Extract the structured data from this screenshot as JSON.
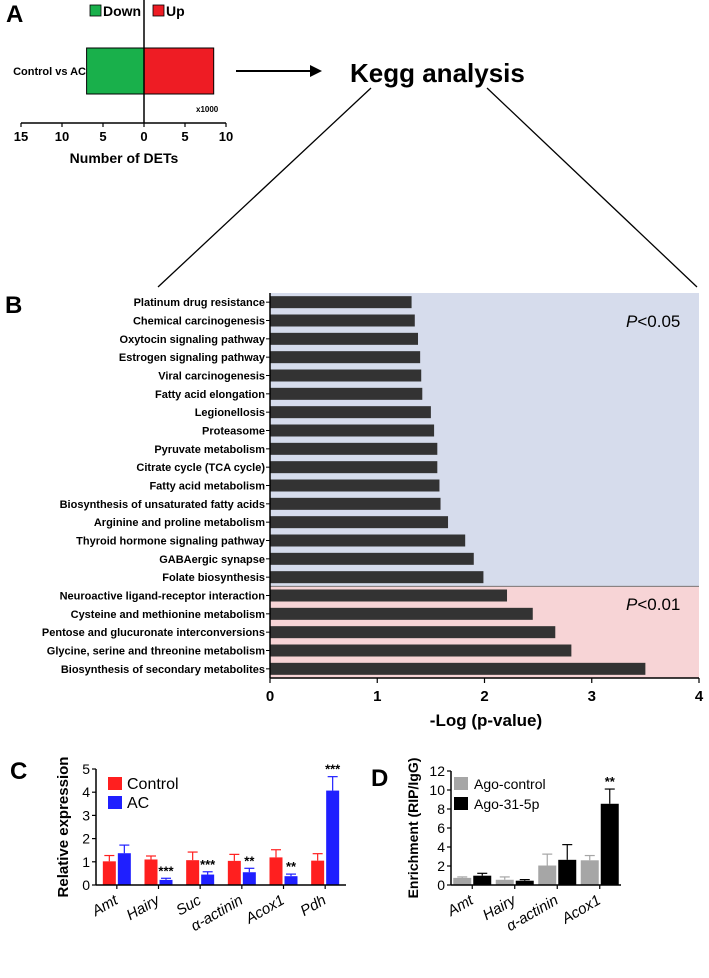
{
  "panel_labels": {
    "a": "A",
    "b": "B",
    "c": "C",
    "d": "D"
  },
  "colors": {
    "down": "#19b04b",
    "up": "#ee1c24",
    "bar_dark": "#333333",
    "sig_005_bg": "#d6dcec",
    "sig_001_bg": "#f7d4d6",
    "control": "#ff1f1f",
    "ac": "#1f1fff",
    "ago_control": "#a6a6a6",
    "ago_315p": "#000000"
  },
  "flow": {
    "title": "Kegg analysis"
  },
  "chart_data": [
    {
      "id": "A",
      "type": "bar",
      "orientation": "horizontal-diverging",
      "categories": [
        "Control vs AC"
      ],
      "series": [
        {
          "name": "Down",
          "values": [
            7
          ]
        },
        {
          "name": "Up",
          "values": [
            8.5
          ]
        }
      ],
      "xlabel": "Number of DETs",
      "x_ticks": [
        "15",
        "10",
        "5",
        "0",
        "5",
        "10"
      ],
      "x_tick_values": [
        -15,
        -10,
        -5,
        0,
        5,
        10
      ],
      "xlim": [
        -15,
        10
      ],
      "scale_note": "x1000",
      "legend": [
        "Down",
        "Up"
      ]
    },
    {
      "id": "B",
      "type": "bar",
      "orientation": "horizontal",
      "categories": [
        "Platinum drug resistance",
        "Chemical carcinogenesis",
        "Oxytocin signaling pathway",
        "Estrogen signaling pathway",
        "Viral carcinogenesis",
        "Fatty acid elongation",
        "Legionellosis",
        "Proteasome",
        "Pyruvate metabolism",
        "Citrate cycle (TCA cycle)",
        "Fatty acid metabolism",
        "Biosynthesis of unsaturated fatty acids",
        "Arginine and proline metabolism",
        "Thyroid hormone signaling pathway",
        "GABAergic synapse",
        "Folate biosynthesis",
        "Neuroactive ligand-receptor interaction",
        "Cysteine and methionine metabolism",
        "Pentose and glucuronate interconversions",
        "Glycine, serine and threonine metabolism",
        "Biosynthesis of secondary metabolites"
      ],
      "values": [
        1.32,
        1.35,
        1.38,
        1.4,
        1.41,
        1.42,
        1.5,
        1.53,
        1.56,
        1.56,
        1.58,
        1.59,
        1.66,
        1.82,
        1.9,
        1.99,
        2.21,
        2.45,
        2.66,
        2.81,
        3.5
      ],
      "xlabel": "-Log (p-value)",
      "x_ticks": [
        "0",
        "1",
        "2",
        "3",
        "4"
      ],
      "x_tick_values": [
        0,
        1,
        2,
        3,
        4
      ],
      "xlim": [
        0,
        4
      ],
      "regions": [
        {
          "label_italic": "P",
          "label_rest": "<0.05",
          "rows": 16
        },
        {
          "label_italic": "P",
          "label_rest": "<0.01",
          "rows": 5
        }
      ]
    },
    {
      "id": "C",
      "type": "bar",
      "orientation": "vertical",
      "categories": [
        "Amt",
        "Hairy",
        "Suc",
        "α-actinin",
        "Acox1",
        "Pdh"
      ],
      "series": [
        {
          "name": "Control",
          "values": [
            1.02,
            1.1,
            1.07,
            1.04,
            1.19,
            1.05
          ],
          "errors": [
            0.25,
            0.15,
            0.35,
            0.28,
            0.33,
            0.3
          ]
        },
        {
          "name": "AC",
          "values": [
            1.37,
            0.22,
            0.45,
            0.55,
            0.38,
            4.07
          ],
          "errors": [
            0.35,
            0.07,
            0.12,
            0.17,
            0.09,
            0.6
          ]
        }
      ],
      "significance": [
        {
          "category": "Hairy",
          "label": "***"
        },
        {
          "category": "Suc",
          "label": "***"
        },
        {
          "category": "α-actinin",
          "label": "**"
        },
        {
          "category": "Acox1",
          "label": "**"
        },
        {
          "category": "Pdh",
          "label": "***"
        }
      ],
      "ylabel": "Relative expression",
      "y_ticks": [
        "0",
        "1",
        "2",
        "3",
        "4",
        "5"
      ],
      "y_tick_values": [
        0,
        1,
        2,
        3,
        4,
        5
      ],
      "ylim": [
        0,
        5
      ],
      "legend": [
        "Control",
        "AC"
      ]
    },
    {
      "id": "D",
      "type": "bar",
      "orientation": "vertical",
      "categories": [
        "Amt",
        "Hairy",
        "α-actinin",
        "Acox1"
      ],
      "series": [
        {
          "name": "Ago-control",
          "values": [
            0.75,
            0.55,
            2.05,
            2.6
          ],
          "errors": [
            0.1,
            0.3,
            1.2,
            0.5
          ]
        },
        {
          "name": "Ago-31-5p",
          "values": [
            0.98,
            0.45,
            2.65,
            8.55
          ],
          "errors": [
            0.25,
            0.12,
            1.6,
            1.55
          ]
        }
      ],
      "significance": [
        {
          "category": "Acox1",
          "label": "**"
        }
      ],
      "ylabel": "Enrichment (RIP/IgG)",
      "y_ticks": [
        "0",
        "2",
        "4",
        "6",
        "8",
        "10",
        "12"
      ],
      "y_tick_values": [
        0,
        2,
        4,
        6,
        8,
        10,
        12
      ],
      "ylim": [
        0,
        12
      ],
      "legend": [
        "Ago-control",
        "Ago-31-5p"
      ]
    }
  ]
}
